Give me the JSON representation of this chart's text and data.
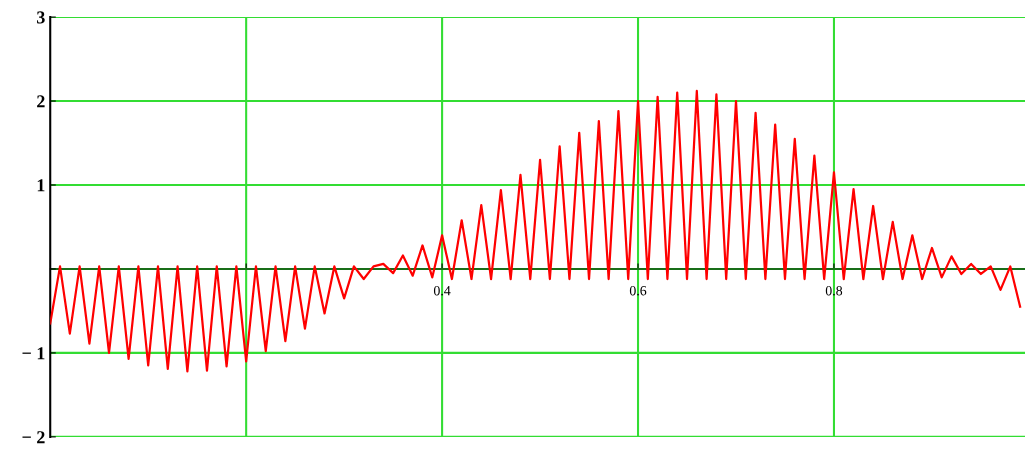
{
  "chart_data": {
    "type": "line",
    "x": [
      0.0,
      0.01,
      0.02,
      0.03,
      0.04,
      0.05,
      0.06,
      0.07,
      0.08,
      0.09,
      0.1,
      0.11,
      0.12,
      0.13,
      0.14,
      0.15,
      0.16,
      0.17,
      0.18,
      0.19,
      0.2,
      0.21,
      0.22,
      0.23,
      0.24,
      0.25,
      0.26,
      0.27,
      0.28,
      0.29,
      0.3,
      0.31,
      0.32,
      0.33,
      0.34,
      0.35,
      0.36,
      0.37,
      0.38,
      0.39,
      0.4,
      0.41,
      0.42,
      0.43,
      0.44,
      0.45,
      0.46,
      0.47,
      0.48,
      0.49,
      0.5,
      0.51,
      0.52,
      0.53,
      0.54,
      0.55,
      0.56,
      0.57,
      0.58,
      0.59,
      0.6,
      0.61,
      0.62,
      0.63,
      0.64,
      0.65,
      0.66,
      0.67,
      0.68,
      0.69,
      0.7,
      0.71,
      0.72,
      0.73,
      0.74,
      0.75,
      0.76,
      0.77,
      0.78,
      0.79,
      0.8,
      0.81,
      0.82,
      0.83,
      0.84,
      0.85,
      0.86,
      0.87,
      0.88,
      0.89,
      0.9,
      0.91,
      0.92,
      0.93,
      0.94,
      0.95,
      0.96,
      0.97,
      0.98,
      0.99
    ],
    "series": [
      {
        "color": "#ff0000",
        "values": [
          -0.65,
          0.03,
          -0.77,
          0.03,
          -0.89,
          0.03,
          -1.0,
          0.03,
          -1.07,
          0.03,
          -1.15,
          0.03,
          -1.19,
          0.03,
          -1.22,
          0.03,
          -1.21,
          0.03,
          -1.16,
          0.03,
          -1.1,
          0.03,
          -0.98,
          0.03,
          -0.86,
          0.03,
          -0.71,
          0.03,
          -0.53,
          0.03,
          -0.35,
          0.03,
          -0.12,
          0.03,
          0.06,
          -0.05,
          0.16,
          -0.08,
          0.28,
          -0.1,
          0.4,
          -0.12,
          0.58,
          -0.12,
          0.76,
          -0.12,
          0.94,
          -0.12,
          1.12,
          -0.12,
          1.3,
          -0.12,
          1.46,
          -0.12,
          1.62,
          -0.12,
          1.76,
          -0.12,
          1.88,
          -0.12,
          2.0,
          -0.12,
          2.05,
          -0.12,
          2.1,
          -0.12,
          2.12,
          -0.12,
          2.08,
          -0.12,
          2.0,
          -0.12,
          1.86,
          -0.12,
          1.72,
          -0.12,
          1.55,
          -0.12,
          1.35,
          -0.12,
          1.15,
          -0.12,
          0.95,
          -0.12,
          0.75,
          -0.12,
          0.56,
          -0.12,
          0.4,
          -0.12,
          0.25,
          -0.1,
          0.15,
          -0.06,
          0.06,
          -0.06,
          0.03,
          -0.25,
          0.03,
          -0.45
        ]
      }
    ],
    "xlim": [
      0,
      0.995
    ],
    "xticks": [
      {
        "value": 0.2,
        "label": null
      },
      0.4,
      0.6,
      0.8
    ],
    "ylim": [
      -2,
      3
    ],
    "yticks": [
      {
        "value": -2,
        "label": "− 2"
      },
      {
        "value": -1,
        "label": "− 1"
      },
      {
        "value": 0,
        "label": null
      },
      1,
      2,
      3
    ],
    "grid": true,
    "marker": "none",
    "line_style": "solid"
  }
}
